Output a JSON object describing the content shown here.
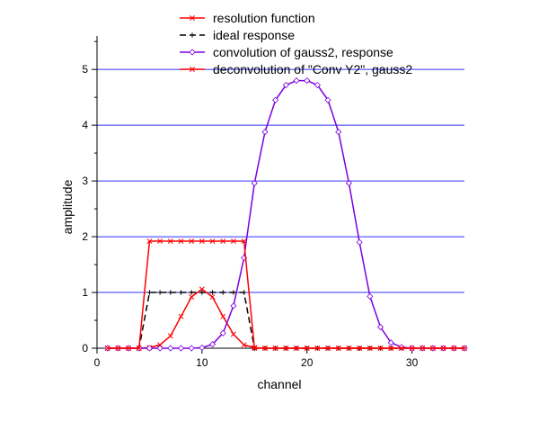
{
  "chart_data": {
    "type": "line",
    "xlabel": "channel",
    "ylabel": "amplitude",
    "xlim": [
      0,
      35
    ],
    "ylim": [
      0,
      5.6
    ],
    "xticks": [
      0,
      10,
      20,
      30
    ],
    "yticks": [
      0,
      1,
      2,
      3,
      4,
      5
    ],
    "grid": "horizontal",
    "gridlines": [
      1,
      2,
      3,
      4,
      5
    ],
    "legend_position": "top",
    "series": [
      {
        "name": "resolution function",
        "color": "#ff0000",
        "marker": "cross",
        "x": [
          1,
          2,
          3,
          4,
          5,
          6,
          7,
          8,
          9,
          10,
          11,
          12,
          13,
          14,
          15,
          16,
          17,
          18,
          19,
          20,
          21,
          22,
          23,
          24,
          25,
          26,
          27,
          28,
          29,
          30,
          31,
          32,
          33,
          34,
          35
        ],
        "y": [
          0,
          0,
          0,
          0,
          0.01,
          0.06,
          0.22,
          0.57,
          0.92,
          1.06,
          0.92,
          0.57,
          0.25,
          0.06,
          0.01,
          0,
          0,
          0,
          0,
          0,
          0,
          0,
          0,
          0,
          0,
          0,
          0,
          0,
          0,
          0,
          0,
          0,
          0,
          0,
          0
        ]
      },
      {
        "name": "ideal response",
        "color": "#000000",
        "marker": "plus",
        "dash": "dashed",
        "x": [
          1,
          2,
          3,
          4,
          5,
          6,
          7,
          8,
          9,
          10,
          11,
          12,
          13,
          14,
          15,
          16,
          17,
          18,
          19,
          20,
          21,
          22,
          23,
          24,
          25,
          26,
          27,
          28,
          29,
          30,
          31,
          32,
          33,
          34,
          35
        ],
        "y": [
          0,
          0,
          0,
          0,
          1,
          1,
          1,
          1,
          1,
          1,
          1,
          1,
          1,
          1,
          0,
          0,
          0,
          0,
          0,
          0,
          0,
          0,
          0,
          0,
          0,
          0,
          0,
          0,
          0,
          0,
          0,
          0,
          0,
          0,
          0
        ]
      },
      {
        "name": "convolution of gauss2, response",
        "color": "#7b00e0",
        "marker": "diamond",
        "x": [
          1,
          2,
          3,
          4,
          5,
          6,
          7,
          8,
          9,
          10,
          11,
          12,
          13,
          14,
          15,
          16,
          17,
          18,
          19,
          20,
          21,
          22,
          23,
          24,
          25,
          26,
          27,
          28,
          29,
          30,
          31,
          32,
          33,
          34,
          35
        ],
        "y": [
          0,
          0,
          0,
          0,
          0,
          0,
          0,
          0,
          0,
          0.01,
          0.07,
          0.27,
          0.76,
          1.62,
          2.96,
          3.88,
          4.45,
          4.72,
          4.8,
          4.8,
          4.72,
          4.45,
          3.88,
          2.96,
          1.9,
          0.93,
          0.38,
          0.1,
          0.02,
          0,
          0,
          0,
          0,
          0,
          0
        ]
      },
      {
        "name": "deconvolution of \"Conv Y2\", gauss2",
        "color": "#ff0000",
        "marker": "cross",
        "x": [
          1,
          2,
          3,
          4,
          5,
          6,
          7,
          8,
          9,
          10,
          11,
          12,
          13,
          14,
          15,
          16,
          17,
          18,
          19,
          20,
          21,
          22,
          23,
          24,
          25,
          26,
          27,
          28,
          29,
          30,
          31,
          32,
          33,
          34,
          35
        ],
        "y": [
          0,
          0,
          0,
          0,
          1.92,
          1.92,
          1.92,
          1.92,
          1.92,
          1.92,
          1.92,
          1.92,
          1.92,
          1.92,
          0,
          0,
          0,
          0,
          0,
          0,
          0,
          0,
          0,
          0,
          0,
          0,
          0,
          0,
          0,
          0,
          0,
          0,
          0,
          0,
          0
        ]
      }
    ]
  }
}
